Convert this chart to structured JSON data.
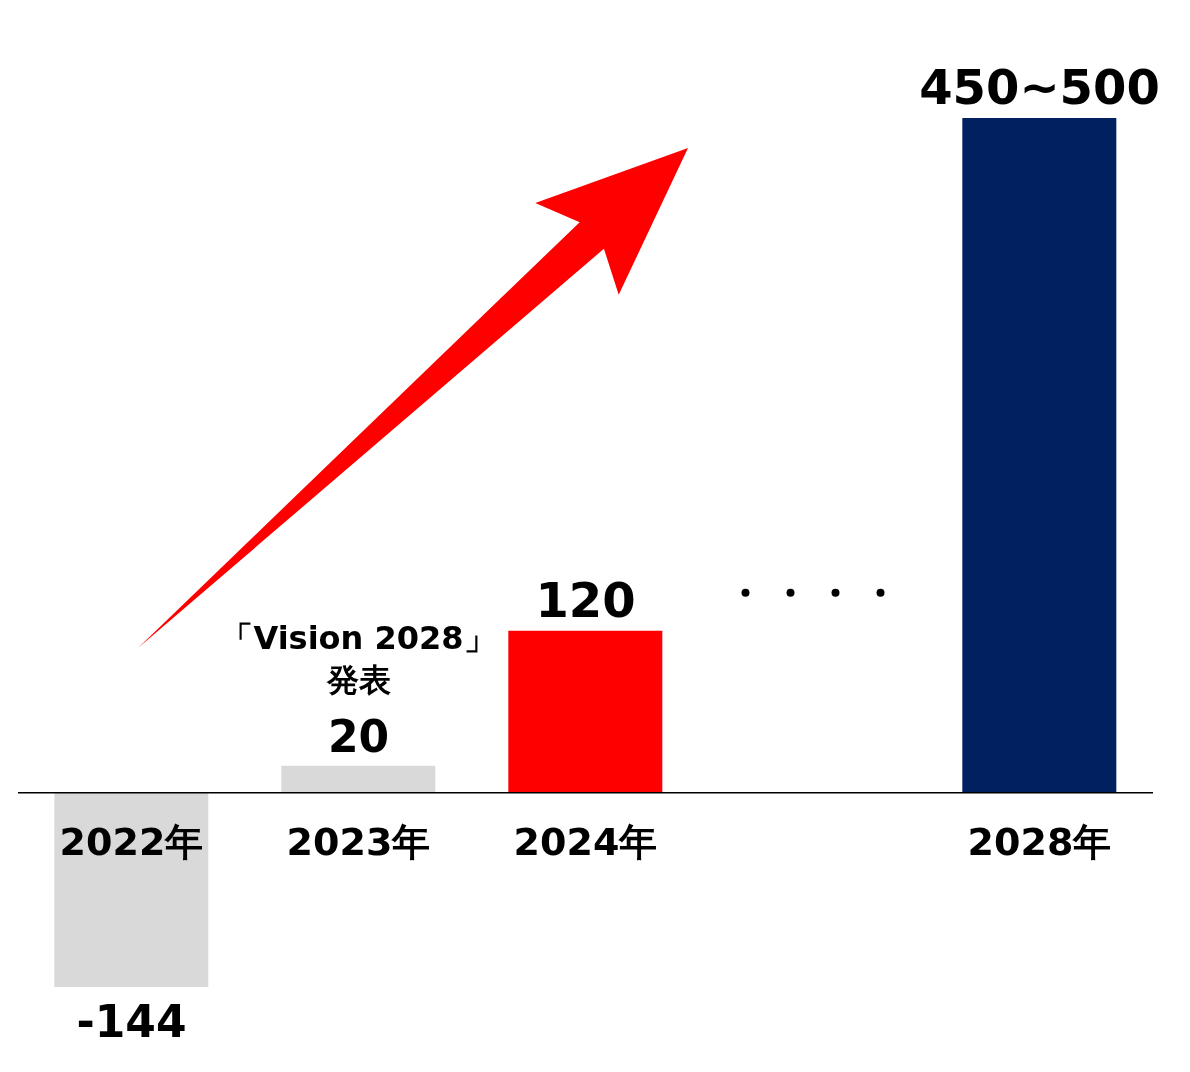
{
  "chart_data": {
    "type": "bar",
    "categories": [
      "2022年",
      "2023年",
      "2024年",
      null,
      "2028年"
    ],
    "values": [
      -144,
      20,
      120,
      null,
      500
    ],
    "colors": [
      "#d9d9d9",
      "#d9d9d9",
      "#ff0000",
      null,
      "#002060"
    ],
    "value_labels": [
      "-144",
      "20",
      "120",
      null,
      "450~500"
    ],
    "annotations": [
      "「Vision 2028」",
      "発表"
    ]
  }
}
